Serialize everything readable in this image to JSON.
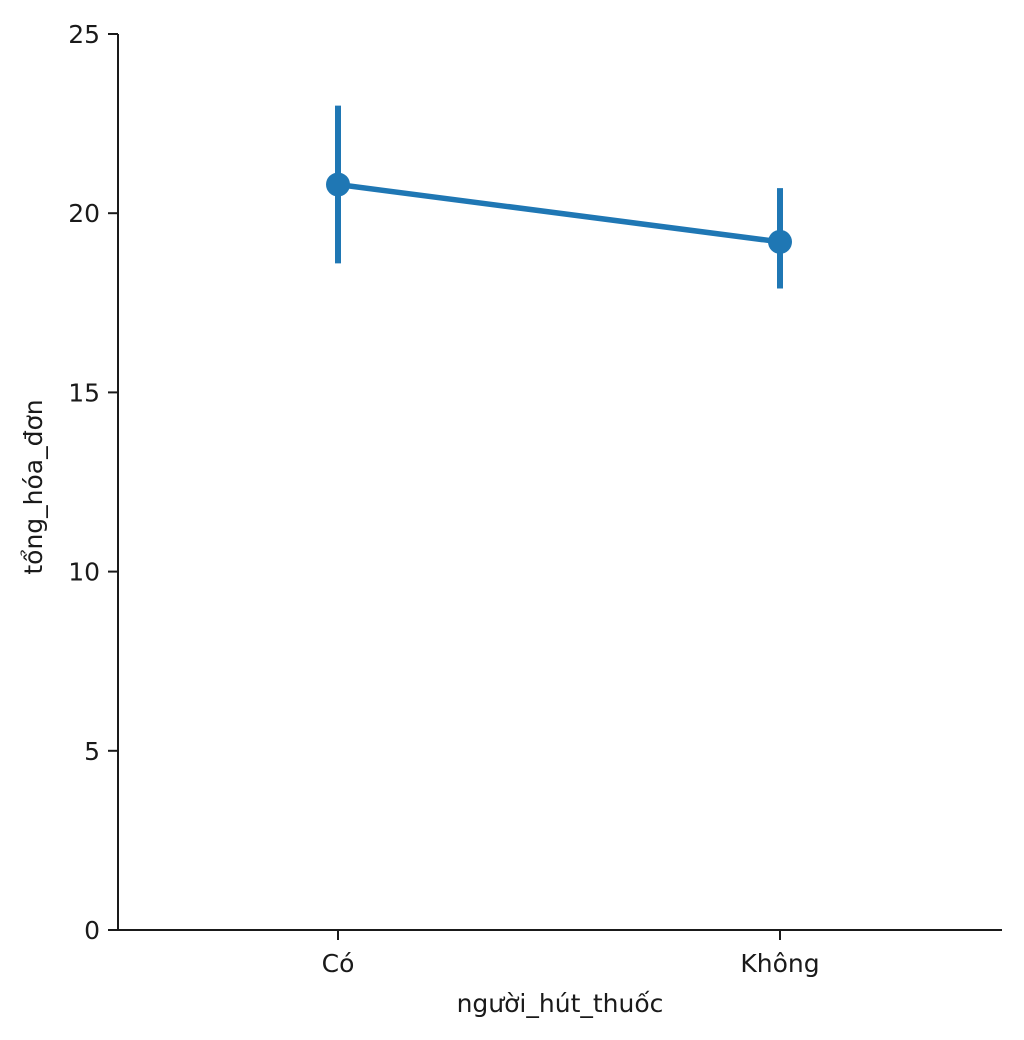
{
  "chart_data": {
    "type": "line",
    "style": "pointplot with error bars",
    "categories": [
      "Có",
      "Không"
    ],
    "series": [
      {
        "values": [
          20.8,
          19.2
        ],
        "ci_low": [
          18.6,
          17.9
        ],
        "ci_high": [
          23.0,
          20.7
        ],
        "color": "#1f77b4"
      }
    ],
    "xlabel": "người_hút_thuốc",
    "ylabel": "tổng_hóa_đơn",
    "ylim": [
      0,
      25
    ],
    "yticks": [
      0,
      5,
      10,
      15,
      20,
      25
    ],
    "grid": false,
    "spines": "left-bottom"
  }
}
